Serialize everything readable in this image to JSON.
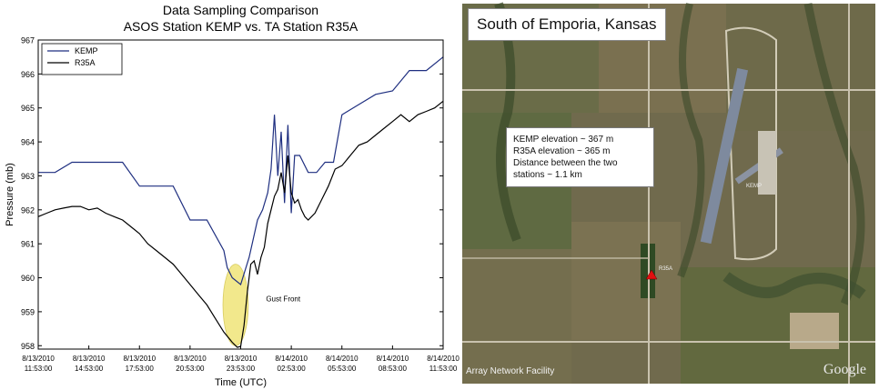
{
  "chart_data": {
    "type": "line",
    "title": "Data Sampling Comparison",
    "subtitle": "ASOS Station KEMP vs. TA Station R35A",
    "xlabel": "Time (UTC)",
    "ylabel": "Pressure (mb)",
    "ylim": [
      957.9,
      967
    ],
    "xlim": [
      0,
      24
    ],
    "yticks": [
      "958",
      "959",
      "960",
      "961",
      "962",
      "963",
      "964",
      "965",
      "966",
      "967"
    ],
    "x_tick_dates": [
      "8/13/2010",
      "8/13/2010",
      "8/13/2010",
      "8/13/2010",
      "8/13/2010",
      "8/14/2010",
      "8/14/2010",
      "8/14/2010",
      "8/14/2010"
    ],
    "x_tick_times": [
      "11:53:00",
      "14:53:00",
      "17:53:00",
      "20:53:00",
      "23:53:00",
      "02:53:00",
      "05:53:00",
      "08:53:00",
      "11:53:00"
    ],
    "x_tick_positions_hours": [
      0,
      3,
      6,
      9,
      12,
      15,
      18,
      21,
      24
    ],
    "legend_position": "top-left",
    "grid": false,
    "series": [
      {
        "name": "KEMP",
        "color": "#1f2f80",
        "x": [
          0,
          1,
          1,
          2,
          3,
          4,
          5,
          5,
          6,
          7,
          8,
          9,
          9,
          10,
          11,
          11.2,
          11.5,
          12,
          12.5,
          13,
          13.3,
          13.6,
          13.8,
          14,
          14.2,
          14.4,
          14.6,
          14.8,
          15,
          15.2,
          15.5,
          16,
          16.5,
          17,
          17.5,
          18,
          19,
          20,
          21,
          22,
          23,
          24
        ],
        "y": [
          963.1,
          963.1,
          963.1,
          963.4,
          963.4,
          963.4,
          963.4,
          963.4,
          962.7,
          962.7,
          962.7,
          961.7,
          961.7,
          961.7,
          960.8,
          960.3,
          960,
          959.8,
          960.6,
          961.7,
          962.0,
          962.5,
          963.2,
          964.8,
          963.0,
          964.3,
          962.2,
          964.5,
          961.9,
          963.6,
          963.6,
          963.1,
          963.1,
          963.4,
          963.4,
          964.8,
          965.1,
          965.4,
          965.5,
          966.1,
          966.1,
          966.5
        ]
      },
      {
        "name": "R35A",
        "color": "#000000",
        "x": [
          0,
          0.5,
          1,
          1.5,
          2,
          2.5,
          3,
          3.5,
          4,
          4.5,
          5,
          5.5,
          6,
          6.5,
          7,
          7.5,
          8,
          8.5,
          9,
          9.5,
          10,
          10.5,
          11,
          11.5,
          11.8,
          12,
          12.2,
          12.4,
          12.6,
          12.8,
          13,
          13.2,
          13.4,
          13.6,
          13.8,
          14,
          14.2,
          14.4,
          14.6,
          14.8,
          15,
          15.2,
          15.4,
          15.6,
          15.8,
          16,
          16.4,
          16.8,
          17.2,
          17.6,
          18,
          18.5,
          19,
          19.5,
          20,
          20.5,
          21,
          21.5,
          22,
          22.5,
          23,
          23.5,
          24
        ],
        "y": [
          961.8,
          961.9,
          962.0,
          962.05,
          962.1,
          962.1,
          962.0,
          962.05,
          961.9,
          961.8,
          961.7,
          961.5,
          961.3,
          961.0,
          960.8,
          960.6,
          960.4,
          960.1,
          959.8,
          959.5,
          959.2,
          958.8,
          958.4,
          958.1,
          957.95,
          957.98,
          958.6,
          959.6,
          960.4,
          960.5,
          960.1,
          960.6,
          960.9,
          961.6,
          962.0,
          962.4,
          962.6,
          963.1,
          962.5,
          963.6,
          962.5,
          962.2,
          962.3,
          962.0,
          961.8,
          961.7,
          961.9,
          962.3,
          962.7,
          963.2,
          963.3,
          963.6,
          963.9,
          964.0,
          964.2,
          964.4,
          964.6,
          964.8,
          964.6,
          964.8,
          964.9,
          965.0,
          965.2
        ]
      }
    ],
    "annotations": [
      {
        "text": "Gust Front",
        "x": 13.5,
        "y": 959.3
      }
    ],
    "highlight_ellipse": {
      "cx": 11.7,
      "cy": 959.2,
      "rx": 0.75,
      "ry": 1.2,
      "color": "#f2e88c"
    }
  },
  "map": {
    "title": "South of Emporia, Kansas",
    "info_lines": [
      "KEMP elevation ~ 367 m",
      "R35A elevation ~ 365 m",
      "Distance between the two",
      "stations ~ 1.1 km"
    ],
    "credit": "Array Network Facility",
    "logo": "Google",
    "runway_label": "KEMP",
    "station_label": "R35A",
    "marker_color": "#e01010"
  }
}
